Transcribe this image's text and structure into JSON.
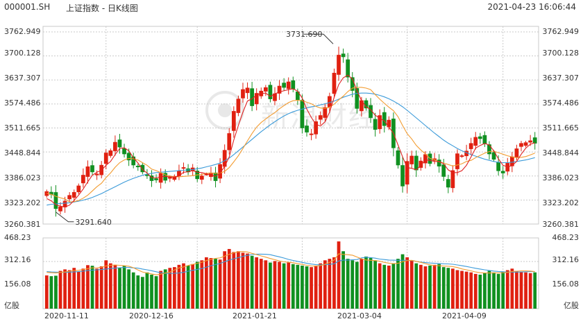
{
  "header": {
    "code": "000001.SH",
    "name": "上证指数 - 日K线图",
    "datetime": "2021-04-23 16:06:44"
  },
  "watermark": "新浪财经",
  "colors": {
    "up": "#e02010",
    "down": "#109020",
    "ma5": "#e02020",
    "ma10": "#f39c30",
    "ma20": "#3a9ad9",
    "grid": "#c9c9c9"
  },
  "chart_data": {
    "type": "candlestick",
    "price_axis": {
      "labels": [
        "3762.949",
        "3700.128",
        "3637.307",
        "3574.486",
        "3511.665",
        "3448.844",
        "3386.023",
        "3323.202",
        "3260.381"
      ],
      "min": 3260.381,
      "max": 3762.949
    },
    "volume_axis": {
      "labels": [
        "468.23",
        "312.16",
        "156.08"
      ],
      "unit": "亿股",
      "max": 468.23
    },
    "x_labels": [
      "2020-11-11",
      "2020-12-16",
      "2021-01-21",
      "2021-03-04",
      "2021-04-09"
    ],
    "annotations": [
      {
        "label": "3731.690",
        "value": 3731.69,
        "index": 64
      },
      {
        "label": "3291.640",
        "value": 3291.64,
        "index": 2
      }
    ],
    "closes": [
      3345,
      3338,
      3301,
      3305,
      3320,
      3335,
      3343,
      3360,
      3388,
      3410,
      3397,
      3391,
      3414,
      3446,
      3452,
      3474,
      3462,
      3444,
      3428,
      3415,
      3411,
      3397,
      3388,
      3374,
      3376,
      3393,
      3375,
      3382,
      3385,
      3399,
      3408,
      3397,
      3407,
      3379,
      3386,
      3391,
      3394,
      3374,
      3416,
      3453,
      3497,
      3555,
      3587,
      3612,
      3616,
      3570,
      3602,
      3608,
      3617,
      3588,
      3601,
      3621,
      3618,
      3632,
      3614,
      3586,
      3512,
      3501,
      3496,
      3528,
      3544,
      3565,
      3594,
      3655,
      3702,
      3698,
      3645,
      3610,
      3563,
      3583,
      3564,
      3539,
      3508,
      3544,
      3518,
      3532,
      3460,
      3415,
      3360,
      3424,
      3438,
      3402,
      3425,
      3442,
      3419,
      3431,
      3412,
      3385,
      3357,
      3400,
      3444,
      3439,
      3451,
      3471,
      3487,
      3484,
      3471,
      3444,
      3430,
      3400,
      3394,
      3419,
      3436,
      3457,
      3471,
      3473,
      3478,
      3472
    ],
    "volume": [
      220,
      215,
      218,
      250,
      260,
      255,
      270,
      245,
      265,
      288,
      284,
      265,
      280,
      320,
      300,
      290,
      270,
      285,
      260,
      240,
      220,
      210,
      240,
      225,
      215,
      250,
      260,
      270,
      275,
      290,
      300,
      285,
      295,
      310,
      320,
      340,
      335,
      330,
      325,
      380,
      395,
      375,
      380,
      370,
      365,
      350,
      340,
      330,
      320,
      305,
      315,
      310,
      300,
      305,
      295,
      290,
      285,
      280,
      275,
      285,
      300,
      320,
      330,
      340,
      445,
      380,
      330,
      320,
      310,
      330,
      345,
      335,
      320,
      300,
      290,
      285,
      300,
      330,
      360,
      340,
      320,
      300,
      290,
      280,
      285,
      290,
      295,
      275,
      270,
      265,
      255,
      250,
      245,
      240,
      230,
      225,
      235,
      250,
      240,
      230,
      245,
      255,
      265,
      250,
      245,
      240,
      235,
      240
    ],
    "ma5": [
      3327,
      3321,
      3311,
      3307,
      3305,
      3310,
      3322,
      3336,
      3352,
      3371,
      3388,
      3396,
      3401,
      3414,
      3424,
      3442,
      3458,
      3460,
      3452,
      3434,
      3420,
      3403,
      3394,
      3382,
      3381,
      3384,
      3385,
      3384,
      3383,
      3386,
      3396,
      3397,
      3400,
      3396,
      3395,
      3392,
      3389,
      3385,
      3394,
      3411,
      3436,
      3480,
      3518,
      3553,
      3582,
      3588,
      3598,
      3602,
      3603,
      3594,
      3601,
      3606,
      3609,
      3612,
      3614,
      3608,
      3590,
      3561,
      3539,
      3521,
      3517,
      3528,
      3553,
      3592,
      3625,
      3643,
      3650,
      3640,
      3610,
      3583,
      3567,
      3560,
      3545,
      3537,
      3530,
      3514,
      3498,
      3467,
      3436,
      3408,
      3406,
      3402,
      3414,
      3428,
      3427,
      3424,
      3424,
      3418,
      3402,
      3395,
      3395,
      3400,
      3414,
      3436,
      3459,
      3466,
      3471,
      3467,
      3452,
      3431,
      3414,
      3410,
      3413,
      3424,
      3443,
      3459,
      3469,
      3473
    ],
    "ma10": [
      3341,
      3338,
      3333,
      3329,
      3326,
      3318,
      3319,
      3322,
      3328,
      3336,
      3347,
      3358,
      3367,
      3382,
      3394,
      3409,
      3421,
      3428,
      3432,
      3431,
      3428,
      3421,
      3414,
      3404,
      3400,
      3395,
      3389,
      3386,
      3384,
      3384,
      3385,
      3386,
      3387,
      3389,
      3390,
      3393,
      3394,
      3393,
      3394,
      3398,
      3408,
      3423,
      3439,
      3458,
      3478,
      3497,
      3514,
      3526,
      3535,
      3544,
      3552,
      3562,
      3570,
      3578,
      3583,
      3584,
      3583,
      3579,
      3575,
      3568,
      3564,
      3563,
      3566,
      3574,
      3585,
      3595,
      3607,
      3616,
      3618,
      3618,
      3616,
      3612,
      3599,
      3587,
      3576,
      3566,
      3557,
      3541,
      3518,
      3497,
      3483,
      3466,
      3454,
      3444,
      3432,
      3429,
      3423,
      3420,
      3416,
      3412,
      3415,
      3418,
      3424,
      3427,
      3434,
      3440,
      3446,
      3450,
      3451,
      3447,
      3443,
      3439,
      3436,
      3434,
      3435,
      3437,
      3441,
      3446
    ],
    "ma20": [
      3310,
      3312,
      3313,
      3314,
      3315,
      3316,
      3318,
      3320,
      3323,
      3326,
      3330,
      3335,
      3340,
      3346,
      3352,
      3358,
      3364,
      3370,
      3375,
      3380,
      3384,
      3388,
      3391,
      3393,
      3395,
      3396,
      3397,
      3398,
      3399,
      3400,
      3401,
      3402,
      3403,
      3405,
      3407,
      3410,
      3413,
      3416,
      3420,
      3426,
      3433,
      3442,
      3452,
      3462,
      3472,
      3482,
      3492,
      3502,
      3511,
      3520,
      3528,
      3536,
      3543,
      3549,
      3554,
      3558,
      3561,
      3564,
      3567,
      3569,
      3572,
      3575,
      3578,
      3582,
      3587,
      3592,
      3596,
      3600,
      3602,
      3603,
      3603,
      3602,
      3600,
      3597,
      3593,
      3588,
      3582,
      3575,
      3567,
      3558,
      3548,
      3538,
      3528,
      3518,
      3508,
      3498,
      3489,
      3480,
      3472,
      3465,
      3458,
      3452,
      3447,
      3442,
      3438,
      3434,
      3430,
      3427,
      3424,
      3422,
      3421,
      3421,
      3422,
      3424,
      3426,
      3428,
      3431,
      3434
    ],
    "vma5": [
      240,
      238,
      236,
      240,
      243,
      248,
      252,
      254,
      259,
      265,
      270,
      271,
      274,
      283,
      287,
      289,
      287,
      284,
      281,
      271,
      256,
      243,
      236,
      230,
      224,
      228,
      236,
      242,
      256,
      270,
      276,
      286,
      293,
      300,
      307,
      318,
      327,
      333,
      336,
      348,
      360,
      370,
      376,
      378,
      375,
      366,
      358,
      349,
      341,
      332,
      324,
      316,
      310,
      307,
      304,
      298,
      293,
      287,
      283,
      282,
      285,
      294,
      307,
      322,
      363,
      359,
      357,
      354,
      342,
      330,
      322,
      320,
      318,
      314,
      306,
      301,
      298,
      300,
      311,
      318,
      320,
      313,
      306,
      298,
      290,
      285,
      284,
      282,
      281,
      278,
      272,
      263,
      257,
      250,
      243,
      238,
      236,
      236,
      237,
      237,
      238,
      240,
      246,
      248,
      250,
      250,
      249,
      245
    ],
    "vma10": [
      245,
      243,
      242,
      241,
      240,
      242,
      243,
      245,
      248,
      252,
      255,
      257,
      259,
      262,
      266,
      268,
      271,
      273,
      272,
      270,
      268,
      262,
      257,
      251,
      244,
      238,
      234,
      233,
      234,
      236,
      240,
      248,
      254,
      260,
      266,
      275,
      284,
      292,
      299,
      311,
      322,
      330,
      338,
      346,
      353,
      358,
      361,
      361,
      360,
      357,
      350,
      343,
      335,
      326,
      319,
      313,
      306,
      300,
      295,
      291,
      290,
      291,
      293,
      297,
      316,
      322,
      322,
      323,
      325,
      336,
      340,
      338,
      334,
      328,
      325,
      322,
      321,
      320,
      320,
      320,
      318,
      313,
      308,
      305,
      302,
      300,
      299,
      297,
      296,
      294,
      289,
      284,
      279,
      273,
      267,
      262,
      257,
      253,
      249,
      246,
      244,
      242,
      242,
      242,
      243,
      244,
      245,
      245
    ]
  }
}
